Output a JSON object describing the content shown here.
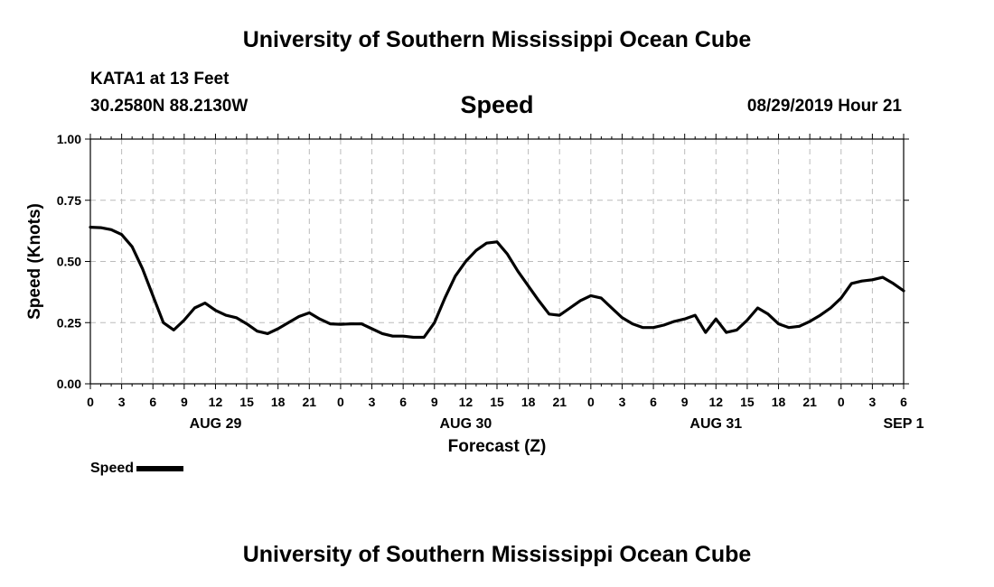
{
  "header": {
    "title_top": "University of Southern Mississippi Ocean Cube",
    "title_bottom": "University of Southern Mississippi Ocean Cube",
    "station": "KATA1 at 13 Feet",
    "coordinates": "30.2580N 88.2130W",
    "variable": "Speed",
    "datetime": "08/29/2019 Hour 21"
  },
  "legend": {
    "label": "Speed",
    "color": "#000000"
  },
  "chart_data": {
    "type": "line",
    "title": "Speed",
    "xlabel": "Forecast (Z)",
    "ylabel": "Speed (Knots)",
    "xlim": [
      0,
      78
    ],
    "ylim": [
      0,
      1
    ],
    "grid": true,
    "legend_position": "bottom-left",
    "y_ticks": [
      "0.00",
      "0.25",
      "0.50",
      "0.75",
      "1.00"
    ],
    "x_ticks": [
      {
        "at": 0,
        "label": "0"
      },
      {
        "at": 3,
        "label": "3"
      },
      {
        "at": 6,
        "label": "6"
      },
      {
        "at": 9,
        "label": "9"
      },
      {
        "at": 12,
        "label": "12"
      },
      {
        "at": 15,
        "label": "15"
      },
      {
        "at": 18,
        "label": "18"
      },
      {
        "at": 21,
        "label": "21"
      },
      {
        "at": 24,
        "label": "0"
      },
      {
        "at": 27,
        "label": "3"
      },
      {
        "at": 30,
        "label": "6"
      },
      {
        "at": 33,
        "label": "9"
      },
      {
        "at": 36,
        "label": "12"
      },
      {
        "at": 39,
        "label": "15"
      },
      {
        "at": 42,
        "label": "18"
      },
      {
        "at": 45,
        "label": "21"
      },
      {
        "at": 48,
        "label": "0"
      },
      {
        "at": 51,
        "label": "3"
      },
      {
        "at": 54,
        "label": "6"
      },
      {
        "at": 57,
        "label": "9"
      },
      {
        "at": 60,
        "label": "12"
      },
      {
        "at": 63,
        "label": "15"
      },
      {
        "at": 66,
        "label": "18"
      },
      {
        "at": 69,
        "label": "21"
      },
      {
        "at": 72,
        "label": "0"
      },
      {
        "at": 75,
        "label": "3"
      },
      {
        "at": 78,
        "label": "6"
      }
    ],
    "date_labels": [
      {
        "at": 12,
        "label": "AUG 29"
      },
      {
        "at": 36,
        "label": "AUG 30"
      },
      {
        "at": 60,
        "label": "AUG 31"
      },
      {
        "at": 78,
        "label": "SEP 1"
      }
    ],
    "series": [
      {
        "name": "Speed",
        "x": [
          0,
          1,
          2,
          3,
          4,
          5,
          6,
          7,
          8,
          9,
          10,
          11,
          12,
          13,
          14,
          15,
          16,
          17,
          18,
          19,
          20,
          21,
          22,
          23,
          24,
          25,
          26,
          27,
          28,
          29,
          30,
          31,
          32,
          33,
          34,
          35,
          36,
          37,
          38,
          39,
          40,
          41,
          42,
          43,
          44,
          45,
          46,
          47,
          48,
          49,
          50,
          51,
          52,
          53,
          54,
          55,
          56,
          57,
          58,
          59,
          60,
          61,
          62,
          63,
          64,
          65,
          66,
          67,
          68,
          69,
          70,
          71,
          72,
          73,
          74,
          75,
          76,
          77,
          78
        ],
        "values": [
          0.64,
          0.638,
          0.63,
          0.61,
          0.56,
          0.47,
          0.36,
          0.25,
          0.22,
          0.26,
          0.31,
          0.33,
          0.3,
          0.28,
          0.27,
          0.245,
          0.215,
          0.205,
          0.225,
          0.25,
          0.275,
          0.29,
          0.265,
          0.245,
          0.243,
          0.245,
          0.245,
          0.225,
          0.205,
          0.195,
          0.195,
          0.19,
          0.19,
          0.25,
          0.35,
          0.44,
          0.5,
          0.545,
          0.575,
          0.58,
          0.53,
          0.46,
          0.4,
          0.34,
          0.285,
          0.28,
          0.31,
          0.34,
          0.36,
          0.35,
          0.31,
          0.27,
          0.245,
          0.23,
          0.23,
          0.24,
          0.255,
          0.265,
          0.28,
          0.21,
          0.265,
          0.21,
          0.22,
          0.26,
          0.31,
          0.285,
          0.245,
          0.23,
          0.235,
          0.255,
          0.28,
          0.31,
          0.35,
          0.41,
          0.42,
          0.425,
          0.435,
          0.41,
          0.38
        ]
      }
    ]
  }
}
